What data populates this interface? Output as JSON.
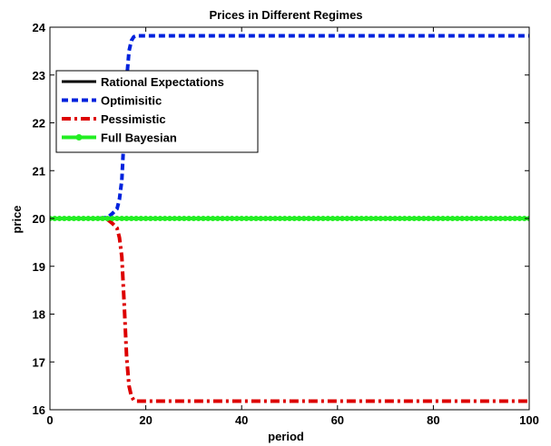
{
  "chart_data": {
    "type": "line",
    "title": "Prices in Different Regimes",
    "xlabel": "period",
    "ylabel": "price",
    "xlim": [
      0,
      100
    ],
    "ylim": [
      16,
      24
    ],
    "xticks": [
      0,
      20,
      40,
      60,
      80,
      100
    ],
    "yticks": [
      16,
      17,
      18,
      19,
      20,
      21,
      22,
      23,
      24
    ],
    "grid": false,
    "legend_position": "upper-left",
    "series": [
      {
        "name": "Rational Expectations",
        "color": "#000000",
        "style": "solid",
        "x": [
          0,
          100
        ],
        "y": [
          20,
          20
        ]
      },
      {
        "name": "Optimisitic",
        "color": "#0022dd",
        "style": "dashed",
        "x": [
          0,
          10,
          12,
          13,
          14,
          14.5,
          15,
          15.5,
          16,
          16.5,
          17,
          17.5,
          18,
          20,
          100
        ],
        "y": [
          20,
          20,
          20.02,
          20.1,
          20.2,
          20.4,
          20.8,
          21.8,
          22.9,
          23.5,
          23.72,
          23.8,
          23.82,
          23.82,
          23.82
        ]
      },
      {
        "name": "Pessimistic",
        "color": "#dd0000",
        "style": "dashdot",
        "x": [
          0,
          10,
          12,
          13,
          14,
          14.5,
          15,
          15.5,
          16,
          16.5,
          17,
          17.5,
          18,
          20,
          100
        ],
        "y": [
          20,
          20,
          19.98,
          19.9,
          19.8,
          19.6,
          19.2,
          18.2,
          17.1,
          16.5,
          16.28,
          16.2,
          16.18,
          16.18,
          16.18
        ]
      },
      {
        "name": "Full Bayesian",
        "color": "#22ee22",
        "style": "solid-markers",
        "x": [
          0,
          100
        ],
        "y": [
          20,
          20
        ]
      }
    ]
  }
}
